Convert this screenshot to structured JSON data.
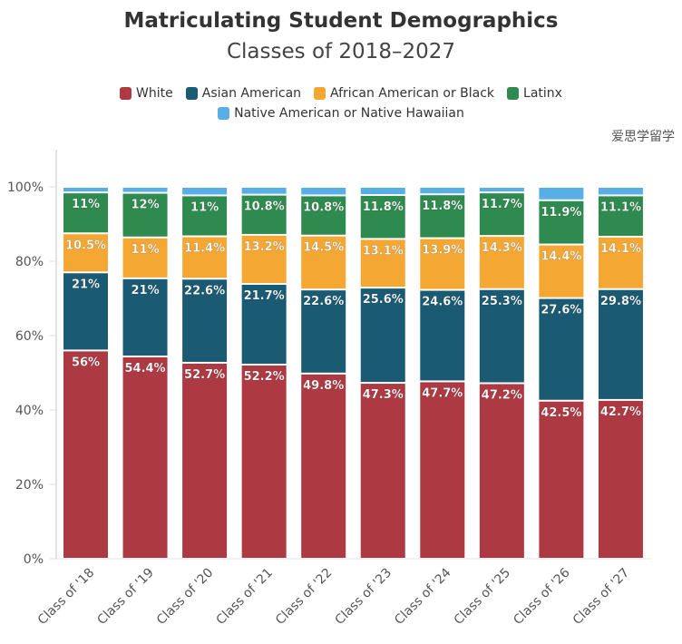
{
  "chart_data": {
    "type": "bar",
    "stacked": true,
    "title": "Matriculating Student Demographics",
    "subtitle": "Classes of 2018–2027",
    "xlabel": "",
    "ylabel": "",
    "ylim": [
      0,
      110
    ],
    "yticks": [
      "0%",
      "20%",
      "40%",
      "60%",
      "80%",
      "100%"
    ],
    "yticks_values": [
      0,
      20,
      40,
      60,
      80,
      100
    ],
    "legend_position": "top",
    "grid": false,
    "categories": [
      "Class of '18",
      "Class of '19",
      "Class of '20",
      "Class of '21",
      "Class of '22",
      "Class of '23",
      "Class of '24",
      "Class of '25",
      "Class of '26",
      "Class of '27"
    ],
    "series": [
      {
        "name": "White",
        "color": "#ad3a43",
        "values": [
          56,
          54.4,
          52.7,
          52.2,
          49.8,
          47.3,
          47.7,
          47.2,
          42.5,
          42.7
        ],
        "labels": [
          "56%",
          "54.4%",
          "52.7%",
          "52.2%",
          "49.8%",
          "47.3%",
          "47.7%",
          "47.2%",
          "42.5%",
          "42.7%"
        ]
      },
      {
        "name": "Asian American",
        "color": "#1b5a73",
        "values": [
          21,
          21,
          22.6,
          21.7,
          22.6,
          25.6,
          24.6,
          25.3,
          27.6,
          29.8
        ],
        "labels": [
          "21%",
          "21%",
          "22.6%",
          "21.7%",
          "22.6%",
          "25.6%",
          "24.6%",
          "25.3%",
          "27.6%",
          "29.8%"
        ]
      },
      {
        "name": "African American or Black",
        "color": "#f5a733",
        "values": [
          10.5,
          11,
          11.4,
          13.2,
          14.5,
          13.1,
          13.9,
          14.3,
          14.4,
          14.1
        ],
        "labels": [
          "10.5%",
          "11%",
          "11.4%",
          "13.2%",
          "14.5%",
          "13.1%",
          "13.9%",
          "14.3%",
          "14.4%",
          "14.1%"
        ]
      },
      {
        "name": "Latinx",
        "color": "#2e8a4e",
        "values": [
          11,
          12,
          11,
          10.8,
          10.8,
          11.8,
          11.8,
          11.7,
          11.9,
          11.1
        ],
        "labels": [
          "11%",
          "12%",
          "11%",
          "10.8%",
          "10.8%",
          "11.8%",
          "11.8%",
          "11.7%",
          "11.9%",
          "11.1%"
        ]
      },
      {
        "name": "Native American or Native Hawaiian",
        "color": "#5aaee6",
        "values": [
          1.5,
          1.6,
          2.3,
          2.1,
          2.3,
          2.2,
          2,
          1.5,
          3.6,
          2.3
        ]
      }
    ]
  },
  "watermark": "爱思学留学"
}
